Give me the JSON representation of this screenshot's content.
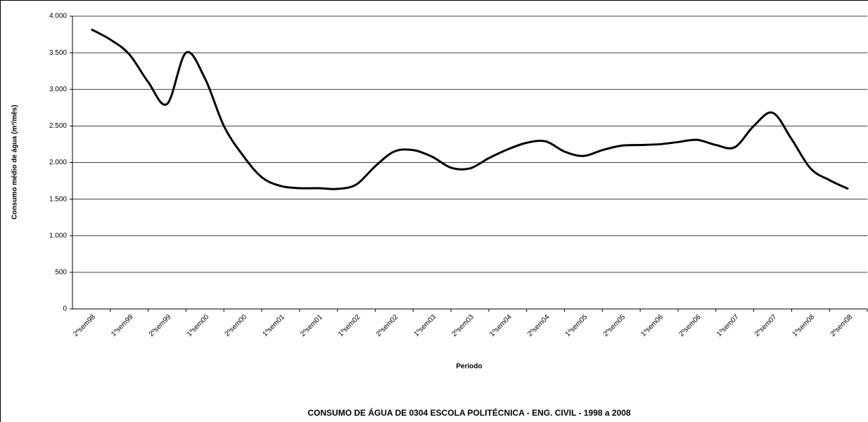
{
  "chart_data": {
    "type": "line",
    "title": "CONSUMO DE ÁGUA DE 0304 ESCOLA POLITÉCNICA - ENG. CIVIL - 1998 a 2008",
    "x_label": "Período",
    "y_label": "Consumo médio de água (m³/mês)",
    "categories": [
      "2ºsem98",
      null,
      "1ºsem99",
      null,
      "2ºsem99",
      null,
      "1ºsem00",
      null,
      "2ºsem00",
      null,
      "1ºsem01",
      null,
      "2ºsem01",
      null,
      "1ºsem02",
      null,
      "2ºsem02",
      null,
      "1ºsem03",
      null,
      "2ºsem03",
      null,
      "1ºsem04",
      null,
      "2ºsem04",
      null,
      "1ºsem05",
      null,
      "2ºsem05",
      null,
      "1ºsem06",
      null,
      "2ºsem06",
      null,
      "1ºsem07",
      null,
      "2ºsem07",
      null,
      "1ºsem08",
      null,
      "2ºsem08"
    ],
    "series": [
      {
        "name": "Consumo",
        "color": "#000000",
        "values": [
          3820,
          3680,
          3480,
          3100,
          2800,
          3500,
          3150,
          2500,
          2100,
          1800,
          1680,
          1650,
          1650,
          1640,
          1700,
          1950,
          2150,
          2170,
          2080,
          1930,
          1920,
          2060,
          2180,
          2270,
          2290,
          2150,
          2090,
          2170,
          2230,
          2240,
          2250,
          2280,
          2310,
          2240,
          2210,
          2500,
          2680,
          2320,
          1920,
          1760,
          1640
        ]
      }
    ],
    "ylim": [
      0,
      4000
    ],
    "yticks": [
      0,
      500,
      {
        "value": 1000,
        "label": "1.000"
      },
      {
        "value": 1500,
        "label": "1.500"
      },
      {
        "value": 2000,
        "label": "2.000"
      },
      {
        "value": 2500,
        "label": "2.500"
      },
      {
        "value": 3000,
        "label": "3.000"
      },
      {
        "value": 3500,
        "label": "3.500"
      },
      {
        "value": 4000,
        "label": "4.000"
      }
    ],
    "grid": true
  }
}
